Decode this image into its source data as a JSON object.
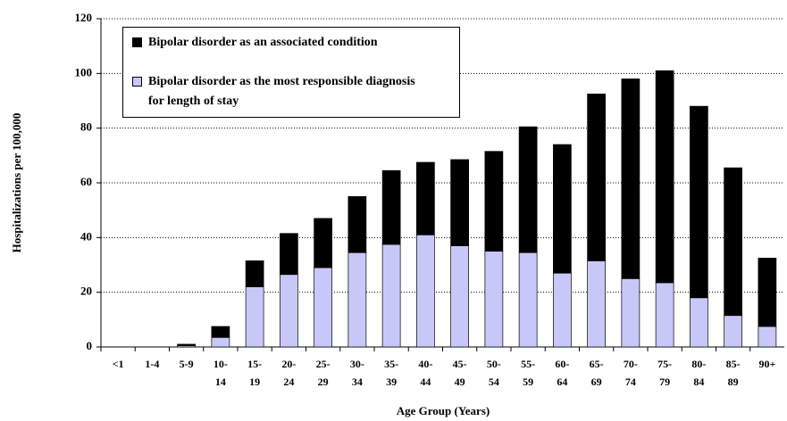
{
  "chart_data": {
    "type": "stacked_bar",
    "x_label": "Age Group (Years)",
    "y_label": "Hospitalizations per 100,000",
    "categories": [
      "<1",
      "1-4",
      "5-9",
      "10-\n14",
      "15-\n19",
      "20-\n24",
      "25-\n29",
      "30-\n34",
      "35-\n39",
      "40-\n44",
      "45-\n49",
      "50-\n54",
      "55-\n59",
      "60-\n64",
      "65-\n69",
      "70-\n74",
      "75-\n79",
      "80-\n84",
      "85-\n89",
      "90+"
    ],
    "series": [
      {
        "name": "Bipolar disorder as the most responsible diagnosis\nfor length of stay",
        "color": "#c8c8f8",
        "values": [
          0,
          0,
          0.5,
          3.5,
          22,
          26.5,
          29,
          34.5,
          37.5,
          41,
          37,
          35,
          34.5,
          27,
          31.5,
          25,
          23.5,
          18,
          11.5,
          7.5
        ]
      },
      {
        "name": "Bipolar disorder as an associated condition",
        "color": "#000000",
        "values": [
          0,
          0,
          0.5,
          4,
          9.5,
          15,
          18,
          20.5,
          27,
          26.5,
          31.5,
          36.5,
          46,
          47,
          61,
          73,
          77.5,
          70,
          54,
          25
        ]
      }
    ],
    "ylim": [
      0,
      120
    ],
    "yticks": [
      0,
      20,
      40,
      60,
      80,
      100,
      120
    ],
    "grid": true,
    "legend": "top-left"
  }
}
